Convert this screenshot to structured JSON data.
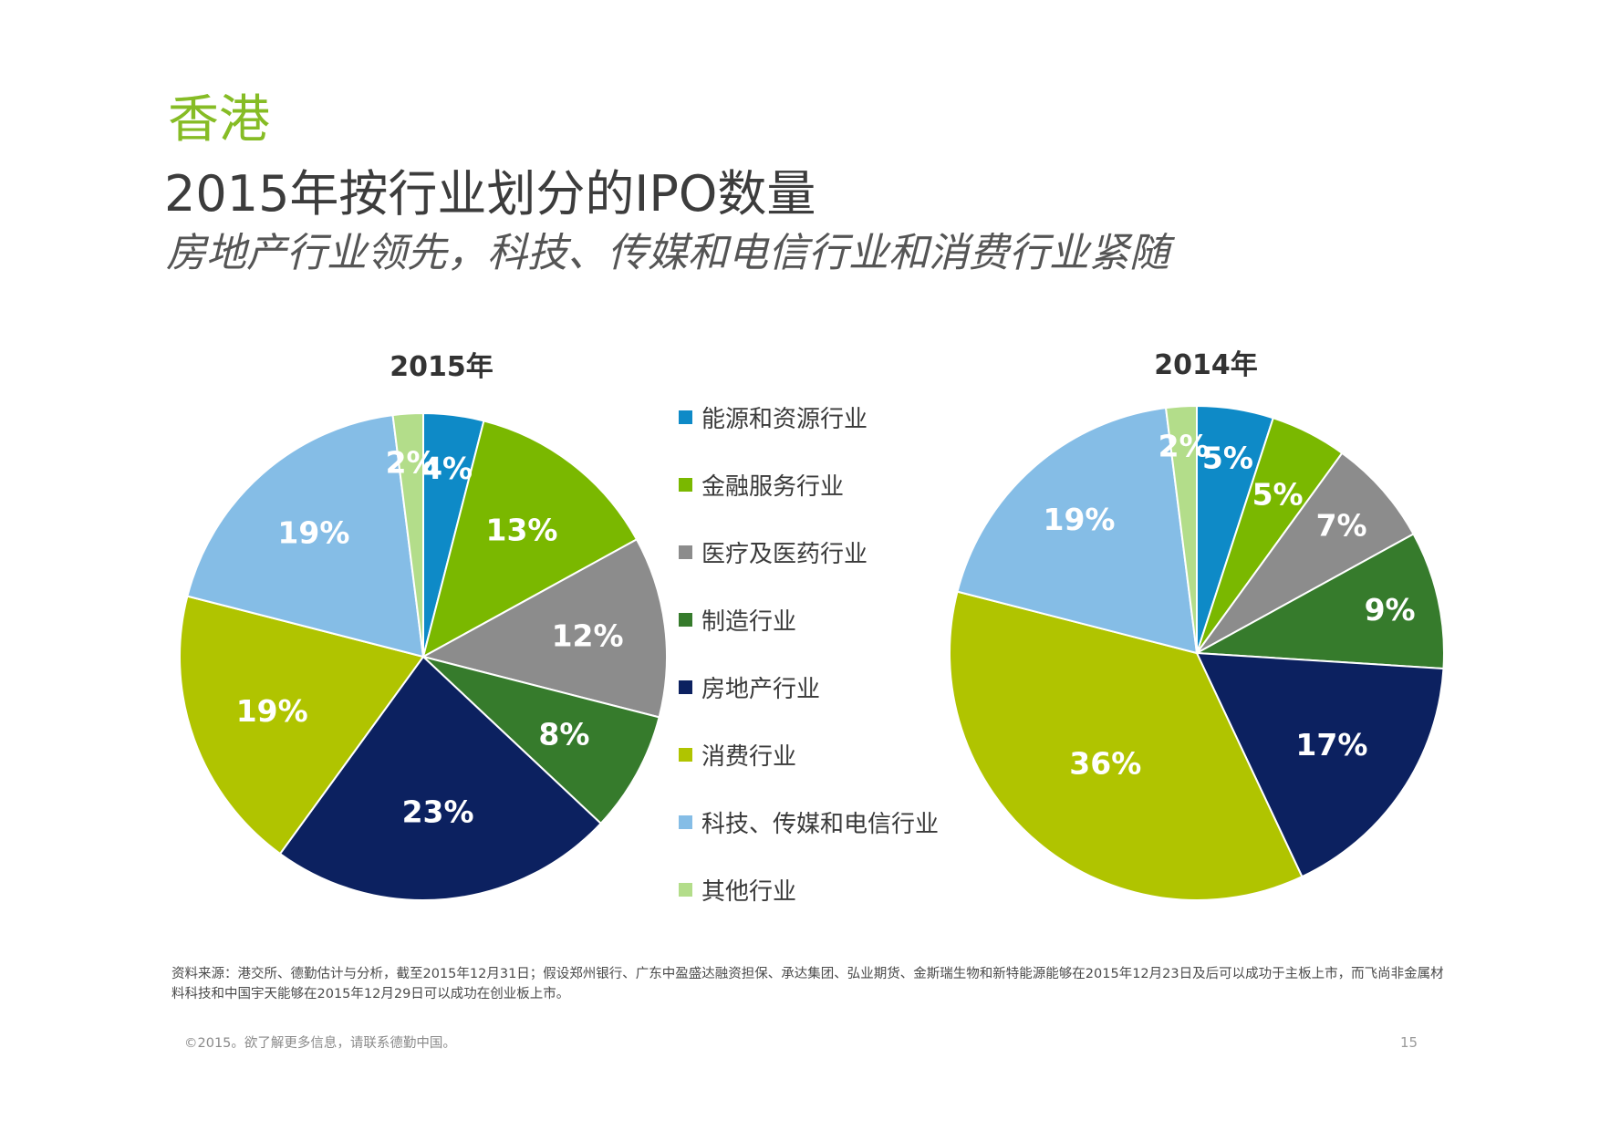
{
  "header": {
    "region": "香港",
    "title": "2015年按行业划分的IPO数量",
    "subtitle": "房地产行业领先，科技、传媒和电信行业和消费行业紧随"
  },
  "legend": [
    {
      "label": "能源和资源行业",
      "color": "#0e8ac7"
    },
    {
      "label": "金融服务行业",
      "color": "#7ab800"
    },
    {
      "label": "医疗及医药行业",
      "color": "#8c8c8c"
    },
    {
      "label": "制造行业",
      "color": "#367b2c"
    },
    {
      "label": "房地产行业",
      "color": "#0c2160"
    },
    {
      "label": "消费行业",
      "color": "#b0c400"
    },
    {
      "label": "科技、传媒和电信行业",
      "color": "#85bde6"
    },
    {
      "label": "其他行业",
      "color": "#b3dd8a"
    }
  ],
  "chart_data": [
    {
      "type": "pie",
      "title": "2015年",
      "categories": [
        "能源和资源行业",
        "金融服务行业",
        "医疗及医药行业",
        "制造行业",
        "房地产行业",
        "消费行业",
        "科技、传媒和电信行业",
        "其他行业"
      ],
      "values": [
        4,
        13,
        12,
        8,
        23,
        19,
        19,
        2
      ],
      "labels": [
        "4%",
        "13%",
        "12%",
        "8%",
        "23%",
        "19%",
        "19%",
        "2%"
      ]
    },
    {
      "type": "pie",
      "title": "2014年",
      "categories": [
        "能源和资源行业",
        "金融服务行业",
        "医疗及医药行业",
        "制造行业",
        "房地产行业",
        "消费行业",
        "科技、传媒和电信行业",
        "其他行业"
      ],
      "values": [
        5,
        5,
        7,
        9,
        17,
        36,
        19,
        2
      ],
      "labels": [
        "5%",
        "5%",
        "7%",
        "9%",
        "17%",
        "36%",
        "19%",
        "2%"
      ]
    }
  ],
  "footnote": "资料来源：港交所、德勤估计与分析，截至2015年12月31日；假设郑州银行、广东中盈盛达融资担保、承达集团、弘业期货、金斯瑞生物和新特能源能够在2015年12月23日及后可以成功于主板上市，而飞尚非金属材料科技和中国宇天能够在2015年12月29日可以成功在创业板上市。",
  "copyright": "©2015。欲了解更多信息，请联系德勤中国。",
  "page_number": "15"
}
